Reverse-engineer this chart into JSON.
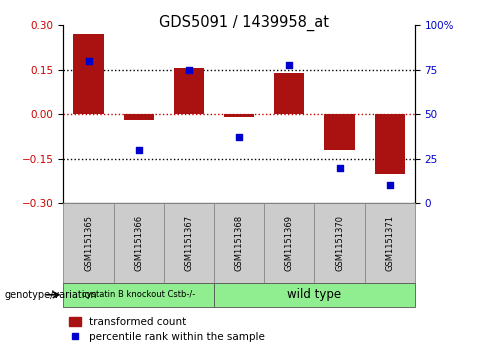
{
  "title": "GDS5091 / 1439958_at",
  "categories": [
    "GSM1151365",
    "GSM1151366",
    "GSM1151367",
    "GSM1151368",
    "GSM1151369",
    "GSM1151370",
    "GSM1151371"
  ],
  "red_bars": [
    0.27,
    -0.02,
    0.155,
    -0.01,
    0.14,
    -0.12,
    -0.2
  ],
  "blue_dots_pct": [
    80,
    30,
    75,
    37,
    78,
    20,
    10
  ],
  "ylim": [
    -0.3,
    0.3
  ],
  "yticks_left": [
    -0.3,
    -0.15,
    0,
    0.15,
    0.3
  ],
  "yticks_right_pct": [
    0,
    25,
    50,
    75,
    100
  ],
  "bar_color": "#AA1111",
  "dot_color": "#0000CC",
  "hline_zero_color": "#CC0000",
  "hline_color": "#000000",
  "group1_label": "cystatin B knockout Cstb-/-",
  "group2_label": "wild type",
  "group1_count": 3,
  "group1_color": "#90EE90",
  "group2_color": "#90EE90",
  "genotype_label": "genotype/variation",
  "legend_bar_label": "transformed count",
  "legend_dot_label": "percentile rank within the sample",
  "bar_width": 0.6,
  "bg_color": "#FFFFFF",
  "sample_box_color": "#CCCCCC",
  "sample_box_edge": "#888888"
}
